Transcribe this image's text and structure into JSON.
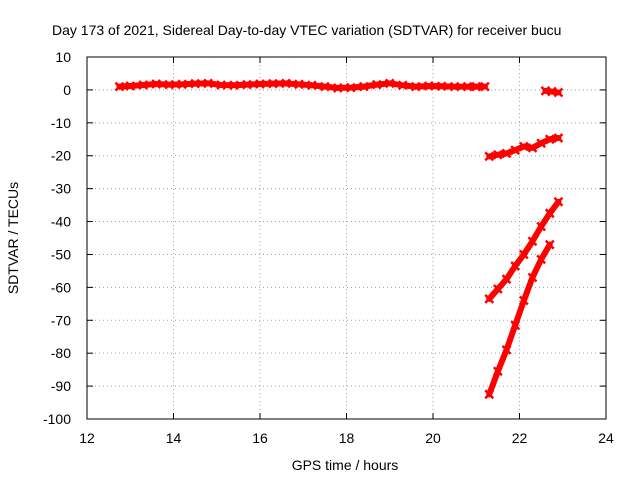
{
  "chart_data": {
    "type": "scatter",
    "title": "Day 173 of 2021, Sidereal Day-to-day VTEC variation (SDTVAR) for receiver bucu",
    "xlabel": "GPS time / hours",
    "ylabel": "SDTVAR / TECUs",
    "xlim": [
      12,
      24
    ],
    "ylim": [
      -100,
      10
    ],
    "xticks": [
      "12",
      "14",
      "16",
      "18",
      "20",
      "22",
      "24"
    ],
    "yticks": [
      "10",
      "0",
      "-10",
      "-20",
      "-30",
      "-40",
      "-50",
      "-60",
      "-70",
      "-80",
      "-90",
      "-100"
    ],
    "grid": true,
    "marker_color": "#ff0000",
    "series": [
      {
        "x": [
          12.75,
          13.0,
          13.3,
          13.6,
          13.9,
          14.2,
          14.5,
          14.8,
          15.1,
          15.4,
          15.7,
          16.0,
          16.3,
          16.6,
          16.9,
          17.2,
          17.5,
          17.8,
          18.1,
          18.4,
          18.7,
          19.0,
          19.3,
          19.6,
          19.9,
          20.2,
          20.5,
          20.8,
          21.0,
          21.2
        ],
        "y": [
          1.0,
          1.2,
          1.5,
          1.8,
          1.6,
          1.7,
          1.9,
          2.0,
          1.5,
          1.4,
          1.6,
          1.8,
          1.9,
          2.0,
          1.7,
          1.4,
          1.0,
          0.6,
          0.7,
          1.0,
          1.6,
          2.0,
          1.4,
          1.0,
          1.2,
          1.1,
          1.0,
          1.0,
          1.0,
          1.0
        ]
      },
      {
        "x": [
          22.6,
          22.75,
          22.9
        ],
        "y": [
          -0.3,
          -0.5,
          -0.8
        ]
      },
      {
        "x": [
          21.3,
          21.5,
          21.7,
          21.9,
          22.1,
          22.3,
          22.5,
          22.7,
          22.9
        ],
        "y": [
          -20.2,
          -19.7,
          -19.3,
          -18.3,
          -17.2,
          -17.6,
          -16.2,
          -15.0,
          -14.6
        ]
      },
      {
        "x": [
          21.3,
          21.5,
          21.7,
          21.9,
          22.1,
          22.3,
          22.5,
          22.7,
          22.9
        ],
        "y": [
          -63.5,
          -60.5,
          -57.5,
          -53.5,
          -50.0,
          -46.0,
          -41.5,
          -37.5,
          -34.0
        ]
      },
      {
        "x": [
          21.3,
          21.5,
          21.7,
          21.9,
          22.1,
          22.3,
          22.5,
          22.7
        ],
        "y": [
          -92.5,
          -85.5,
          -79.0,
          -71.5,
          -64.0,
          -57.0,
          -51.5,
          -47.0
        ]
      }
    ]
  }
}
